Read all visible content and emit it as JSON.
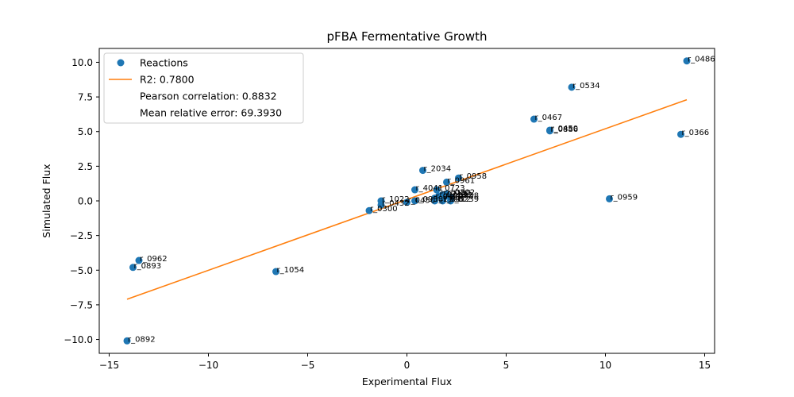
{
  "chart_data": {
    "type": "scatter",
    "title": "pFBA Fermentative Growth",
    "xlabel": "Experimental Flux",
    "ylabel": "Simulated Flux",
    "xlim": [
      -15.5,
      15.5
    ],
    "ylim": [
      -11,
      11
    ],
    "xticks": [
      -15,
      -10,
      -5,
      0,
      5,
      10,
      15
    ],
    "xtick_labels": [
      "−15",
      "−10",
      "−5",
      "0",
      "5",
      "10",
      "15"
    ],
    "yticks": [
      -10,
      -7.5,
      -5,
      -2.5,
      0,
      2.5,
      5,
      7.5,
      10
    ],
    "ytick_labels": [
      "−10.0",
      "−7.5",
      "−5.0",
      "−2.5",
      "0.0",
      "2.5",
      "5.0",
      "7.5",
      "10.0"
    ],
    "grid": false,
    "legend_position": "top-left",
    "colors": {
      "points": "#1f77b4",
      "fit_line": "#ff7f0e"
    },
    "series": [
      {
        "name": "Reactions",
        "points": [
          {
            "x": 14.1,
            "y": 10.1,
            "label": "r_0486"
          },
          {
            "x": 8.3,
            "y": 8.2,
            "label": "r_0534"
          },
          {
            "x": 6.4,
            "y": 5.9,
            "label": "r_0467"
          },
          {
            "x": 7.2,
            "y": 5.1,
            "label": "r_0450"
          },
          {
            "x": 7.2,
            "y": 5.05,
            "label": "r_0886"
          },
          {
            "x": 13.8,
            "y": 4.8,
            "label": "r_0366"
          },
          {
            "x": 10.2,
            "y": 0.15,
            "label": "r_0959"
          },
          {
            "x": 0.8,
            "y": 2.2,
            "label": "r_2034"
          },
          {
            "x": 2.6,
            "y": 1.65,
            "label": "r_0958"
          },
          {
            "x": 2.0,
            "y": 1.35,
            "label": "r_0961"
          },
          {
            "x": 0.4,
            "y": 0.8,
            "label": "r_4041"
          },
          {
            "x": 1.5,
            "y": 0.8,
            "label": "r_0723"
          },
          {
            "x": 2.0,
            "y": 0.5,
            "label": "r_0302"
          },
          {
            "x": 1.8,
            "y": 0.45,
            "label": "r_0280"
          },
          {
            "x": 1.6,
            "y": 0.35,
            "label": "r_0713"
          },
          {
            "x": 1.9,
            "y": 0.3,
            "label": "r_0892"
          },
          {
            "x": 2.2,
            "y": 0.25,
            "label": "r_0888"
          },
          {
            "x": 1.4,
            "y": 0.2,
            "label": "r_0450"
          },
          {
            "x": 2.2,
            "y": 0.0,
            "label": "r_0239"
          },
          {
            "x": 1.4,
            "y": 0.0,
            "label": "r_1106"
          },
          {
            "x": 1.8,
            "y": 0.0,
            "label": "r_0112"
          },
          {
            "x": 0.4,
            "y": 0.0,
            "label": "r_0958"
          },
          {
            "x": 0.0,
            "y": -0.1,
            "label": "r_0450"
          },
          {
            "x": -1.3,
            "y": 0.0,
            "label": "r_1022"
          },
          {
            "x": -1.3,
            "y": -0.3,
            "label": "r_0432"
          },
          {
            "x": -1.9,
            "y": -0.7,
            "label": "r_0300"
          },
          {
            "x": -6.6,
            "y": -5.1,
            "label": "r_1054"
          },
          {
            "x": -13.5,
            "y": -4.3,
            "label": "r_0962"
          },
          {
            "x": -13.8,
            "y": -4.8,
            "label": "r_0893"
          },
          {
            "x": -14.1,
            "y": -10.1,
            "label": "r_0892"
          }
        ]
      },
      {
        "name": "R2: 0.7800",
        "line": {
          "x": [
            -14.1,
            14.1
          ],
          "y": [
            -7.1,
            7.3
          ]
        }
      }
    ],
    "legend_entries": [
      {
        "kind": "marker",
        "text": "Reactions"
      },
      {
        "kind": "line",
        "text": "R2: 0.7800"
      },
      {
        "kind": "none",
        "text": "Pearson correlation: 0.8832"
      },
      {
        "kind": "none",
        "text": "Mean relative error: 69.3930"
      }
    ]
  }
}
